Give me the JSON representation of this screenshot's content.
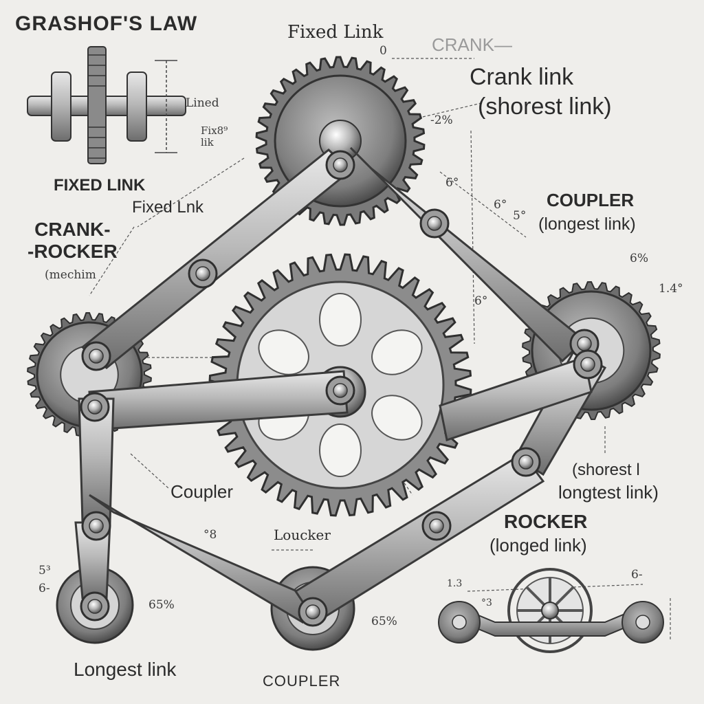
{
  "title": "GRASHOF'S LAW",
  "labels": {
    "fixed_link_top": "Fixed Link",
    "top_zero": "0",
    "crank_faint": "CRANK—",
    "crank_link": "Crank link",
    "shortest_link_paren": "(shorest link)",
    "inset_lined": "Lined",
    "inset_fixed_small": "Fix8⁹\nlik",
    "fixed_link_caps": "FIXED LINK",
    "fixed_link_mid": "Fixed Lnk",
    "crank_rocker": "CRANK-\n-ROCKER",
    "mechanism": "(mechim",
    "coupler_caps_right": "COUPLER",
    "longest_link_paren": "(longest link)",
    "coupler_lower": "Coupler",
    "shorest_right": "(shorest l",
    "longest_link_right": "longtest link)",
    "rocker_caps": "ROCKER",
    "longed_link": "(longed link)",
    "loucker": "Loucker",
    "longest_link_bottom": "Longest link",
    "coupler_bottom": "COUPLER"
  },
  "dimensions": {
    "d1": "-2%",
    "d2": "6°",
    "d3": "6°",
    "d4": "5°",
    "d5": "6%",
    "d6": "1.4°",
    "d7": "6°",
    "d8": "5³",
    "d9": "6-",
    "d10": "65%",
    "d11": "65%",
    "d12": "6-",
    "d13": "1.3",
    "d14": "°3",
    "d15": "°8"
  },
  "colors": {
    "background": "#efeeeb",
    "ink": "#2b2b2b",
    "metal_light": "#cfcfcf",
    "metal_dark": "#4a4a4a"
  }
}
